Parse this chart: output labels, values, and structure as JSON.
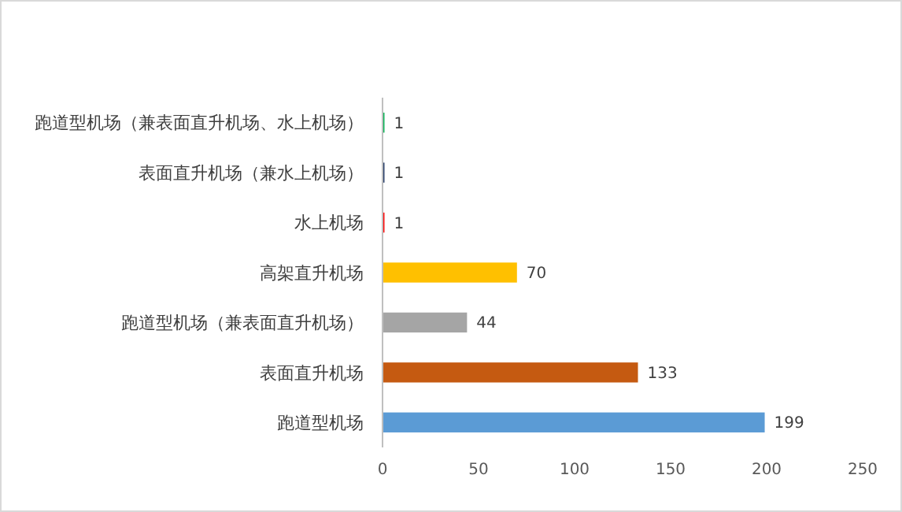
{
  "chart_data": {
    "type": "bar",
    "orientation": "horizontal",
    "categories": [
      "跑道型机场（兼表面直升机场、水上机场）",
      "表面直升机场（兼水上机场）",
      "水上机场",
      "高架直升机场",
      "跑道型机场（兼表面直升机场）",
      "表面直升机场",
      "跑道型机场"
    ],
    "values": [
      1,
      1,
      1,
      70,
      44,
      133,
      199
    ],
    "colors": [
      "#00b050",
      "#203864",
      "#ff0000",
      "#ffc000",
      "#a5a5a5",
      "#c55a11",
      "#5b9bd5"
    ],
    "xlim": [
      0,
      250
    ],
    "xticks": [
      0,
      50,
      100,
      150,
      200,
      250
    ],
    "data_labels": true,
    "grid": false
  }
}
